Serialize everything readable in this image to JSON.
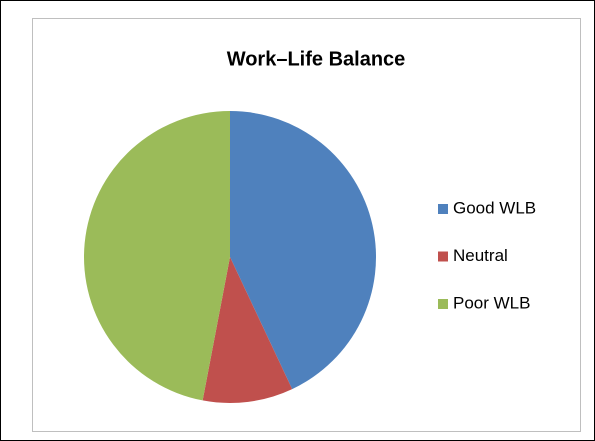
{
  "chart_data": {
    "type": "pie",
    "title": "Work–Life Balance",
    "categories": [
      "Good WLB",
      "Neutral",
      "Poor WLB"
    ],
    "values": [
      43,
      10,
      47
    ],
    "colors": [
      "#4f81bd",
      "#c0504d",
      "#9bbb59"
    ],
    "legend": "right"
  }
}
